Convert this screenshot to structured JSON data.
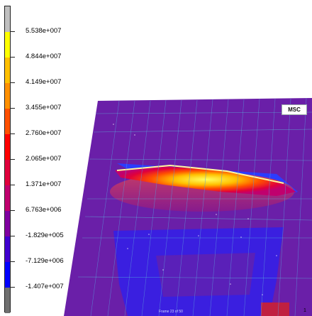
{
  "legend": {
    "labels": [
      "5.538e+007",
      "4.844e+007",
      "4.149e+007",
      "3.455e+007",
      "2.760e+007",
      "2.065e+007",
      "1.371e+007",
      "6.763e+006",
      "-1.829e+005",
      "-7.129e+006",
      "-1.407e+007"
    ],
    "colors": [
      "#c0c0c0",
      "#ffff00",
      "#ffc000",
      "#ff9000",
      "#ff5000",
      "#ff0000",
      "#e0003c",
      "#c0006e",
      "#8000a0",
      "#4000d0",
      "#0000ff",
      "#707070"
    ]
  },
  "logo": {
    "text": "MSC"
  },
  "frame_number": "1",
  "caption": "Frame 23 of 50"
}
